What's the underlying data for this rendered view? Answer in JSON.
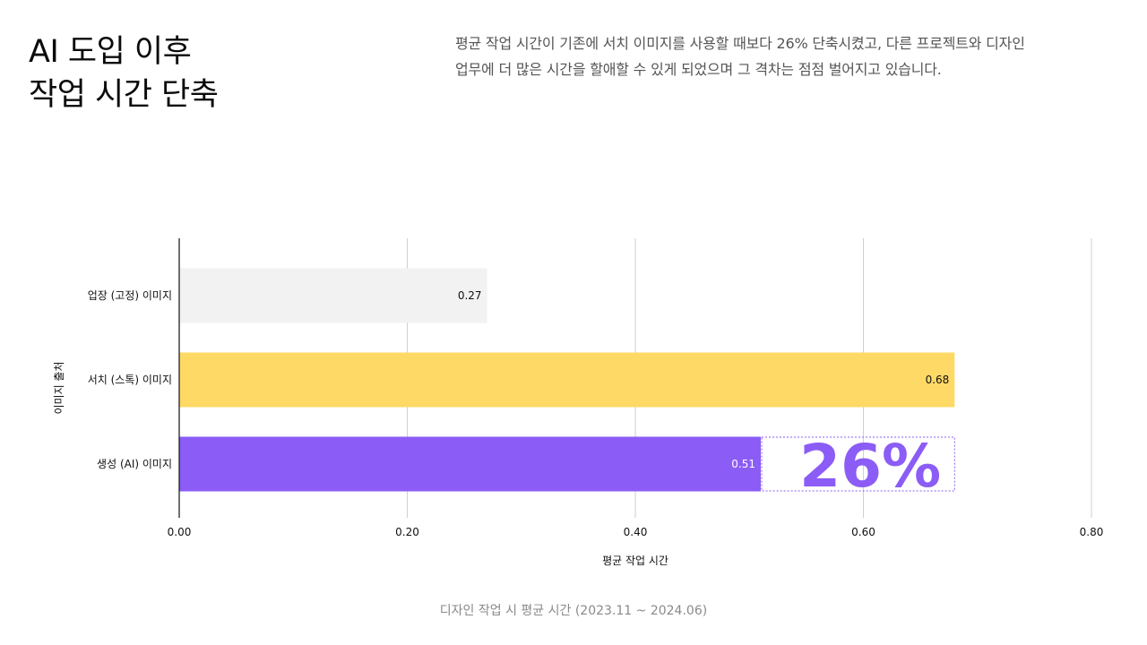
{
  "header": {
    "title_lines": [
      "AI 도입 이후",
      "작업 시간 단축"
    ],
    "subtitle_lines": [
      "평균 작업 시간이 기존에 서치 이미지를 사용할 때보다 26% 단축시켰고, 다른 프로젝트와 디자인",
      "업무에 더 많은 시간을 할애할 수 있게 되었으며 그 격차는 점점 벌어지고 있습니다."
    ]
  },
  "chart_data": {
    "type": "bar",
    "orientation": "horizontal",
    "categories": [
      "업장 (고정) 이미지",
      "서치 (스톡) 이미지",
      "생성 (AI) 이미지"
    ],
    "values": [
      0.27,
      0.68,
      0.51
    ],
    "value_labels": [
      "0.27",
      "0.68",
      "0.51"
    ],
    "colors": [
      "#f2f2f2",
      "#ffd966",
      "#8b5cf6"
    ],
    "value_label_colors": [
      "#111111",
      "#111111",
      "#ffffff"
    ],
    "xlabel": "평균 작업 시간",
    "ylabel": "이미지 출처",
    "xlim": [
      0,
      0.8
    ],
    "xticks": [
      0,
      0.2,
      0.4,
      0.6,
      0.8
    ],
    "xtick_labels": [
      "0.00",
      "0.20",
      "0.40",
      "0.60",
      "0.80"
    ],
    "grid": "vertical",
    "annotation": {
      "text": "26%",
      "from_value": 0.51,
      "to_value": 0.68,
      "category_index": 2,
      "color": "#8b5cf6"
    }
  },
  "footer": {
    "caption": "디자인 작업 시 평균 시간 (2023.11 ~ 2024.06)"
  }
}
